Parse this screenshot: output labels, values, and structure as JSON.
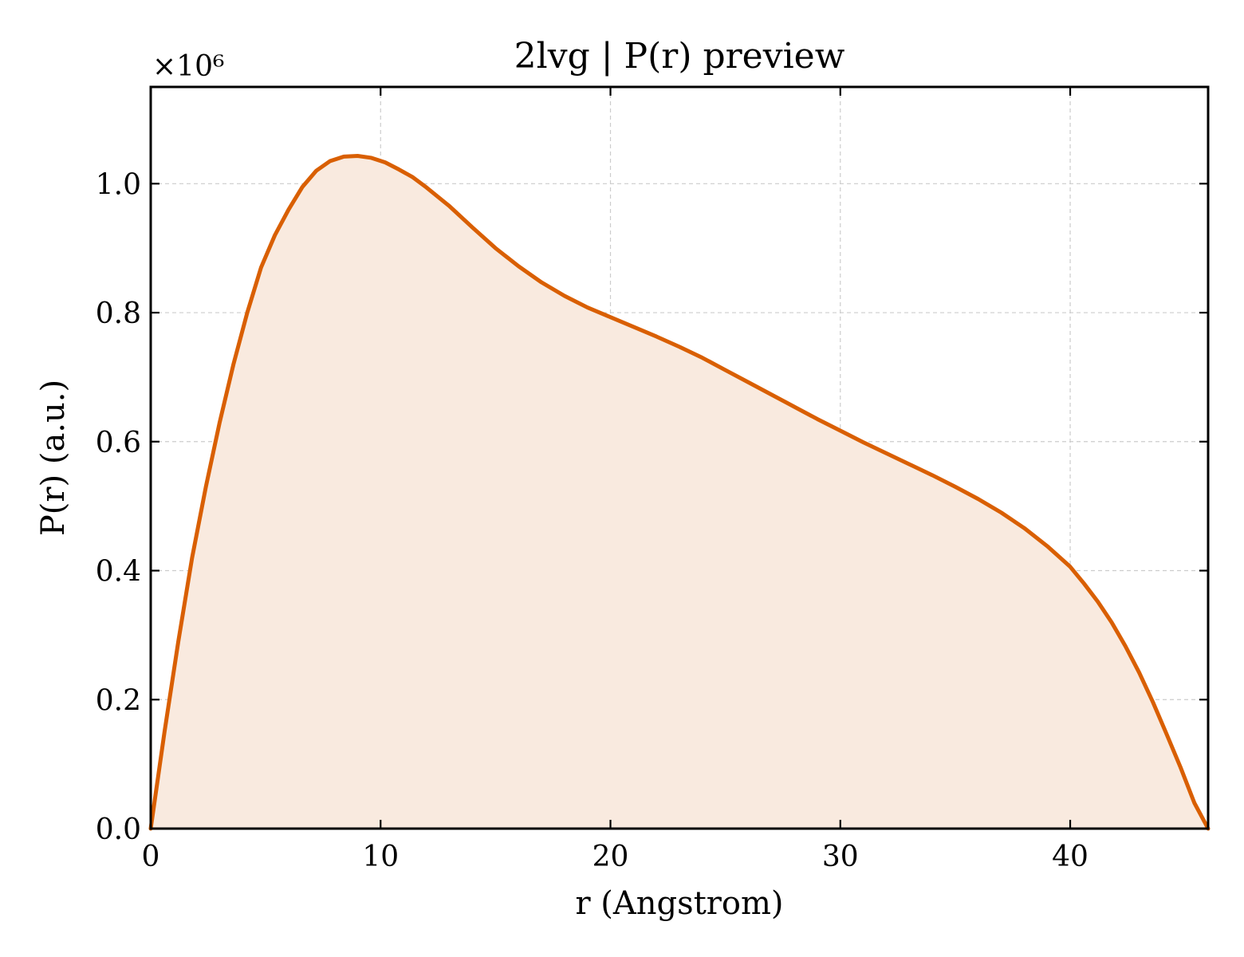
{
  "chart_data": {
    "type": "area",
    "title": "2lvg | P(r) preview",
    "xlabel": "r (Angstrom)",
    "ylabel": "P(r) (a.u.)",
    "y_scale_multiplier": "×10⁶",
    "xlim": [
      0,
      46
    ],
    "ylim": [
      0,
      1.15
    ],
    "xticks": [
      0,
      10,
      20,
      30,
      40
    ],
    "xtick_labels": [
      "0",
      "10",
      "20",
      "30",
      "40"
    ],
    "yticks": [
      0.0,
      0.2,
      0.4,
      0.6,
      0.8,
      1.0
    ],
    "ytick_labels": [
      "0.0",
      "0.2",
      "0.4",
      "0.6",
      "0.8",
      "1.0"
    ],
    "grid": true,
    "line_color": "#d95f02",
    "fill_color": "#f9eadf",
    "series": [
      {
        "x": [
          0,
          0.6,
          1.2,
          1.8,
          2.4,
          3,
          3.6,
          4.2,
          4.8,
          5.4,
          6,
          6.6,
          7.2,
          7.8,
          8.4,
          9,
          9.6,
          10.2,
          10.8,
          11.4,
          12,
          13,
          14,
          15,
          16,
          17,
          18,
          19,
          20,
          21,
          22,
          23,
          24,
          25,
          26,
          27,
          28,
          29,
          30,
          31,
          32,
          33,
          34,
          35,
          36,
          37,
          38,
          39,
          40,
          40.6,
          41.2,
          41.8,
          42.4,
          43,
          43.6,
          44.2,
          44.8,
          45.4,
          46
        ],
        "values": [
          0,
          0.15,
          0.29,
          0.42,
          0.53,
          0.63,
          0.72,
          0.8,
          0.87,
          0.92,
          0.96,
          0.995,
          1.02,
          1.035,
          1.042,
          1.043,
          1.04,
          1.033,
          1.022,
          1.01,
          0.994,
          0.965,
          0.932,
          0.9,
          0.872,
          0.847,
          0.826,
          0.808,
          0.793,
          0.778,
          0.763,
          0.747,
          0.73,
          0.711,
          0.692,
          0.673,
          0.654,
          0.635,
          0.617,
          0.599,
          0.582,
          0.565,
          0.548,
          0.53,
          0.511,
          0.49,
          0.466,
          0.438,
          0.406,
          0.38,
          0.352,
          0.32,
          0.283,
          0.242,
          0.196,
          0.146,
          0.095,
          0.04,
          0
        ]
      }
    ]
  }
}
